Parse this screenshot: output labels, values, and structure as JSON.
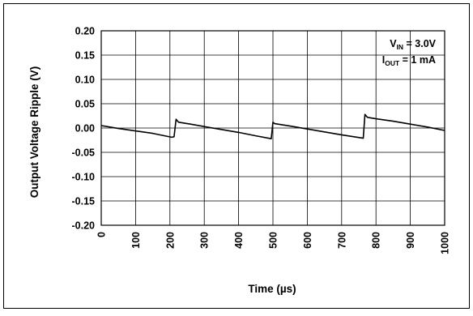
{
  "chart_data": {
    "type": "line",
    "title": "",
    "xlabel": "Time (µs)",
    "ylabel": "Output Voltage Ripple (V)",
    "xlim": [
      0,
      1000
    ],
    "ylim": [
      -0.2,
      0.2
    ],
    "grid": true,
    "x_ticks": [
      "0",
      "100",
      "200",
      "300",
      "400",
      "500",
      "600",
      "700",
      "800",
      "900",
      "1000"
    ],
    "y_ticks": [
      "0.20",
      "0.15",
      "0.10",
      "0.05",
      "0.00",
      "-0.05",
      "-0.10",
      "-0.15",
      "-0.20"
    ],
    "annotation": {
      "vin_main": "V",
      "vin_sub": "IN",
      "vin_value": " = 3.0V",
      "iout_main": "I",
      "iout_sub": "OUT",
      "iout_value": " = 1 mA",
      "placement": "top-right"
    },
    "series": [
      {
        "color": "#000000",
        "x": [
          0,
          50,
          100,
          150,
          205,
          212,
          218,
          225,
          260,
          300,
          350,
          400,
          450,
          495,
          500,
          505,
          550,
          600,
          650,
          700,
          763,
          768,
          775,
          800,
          850,
          900,
          950,
          1000
        ],
        "y": [
          0.005,
          -0.001,
          -0.006,
          -0.011,
          -0.019,
          -0.018,
          0.018,
          0.012,
          0.008,
          0.003,
          -0.003,
          -0.009,
          -0.016,
          -0.022,
          0.012,
          0.009,
          0.004,
          -0.002,
          -0.008,
          -0.014,
          -0.021,
          0.028,
          0.022,
          0.019,
          0.014,
          0.008,
          0.002,
          -0.005
        ]
      }
    ]
  }
}
